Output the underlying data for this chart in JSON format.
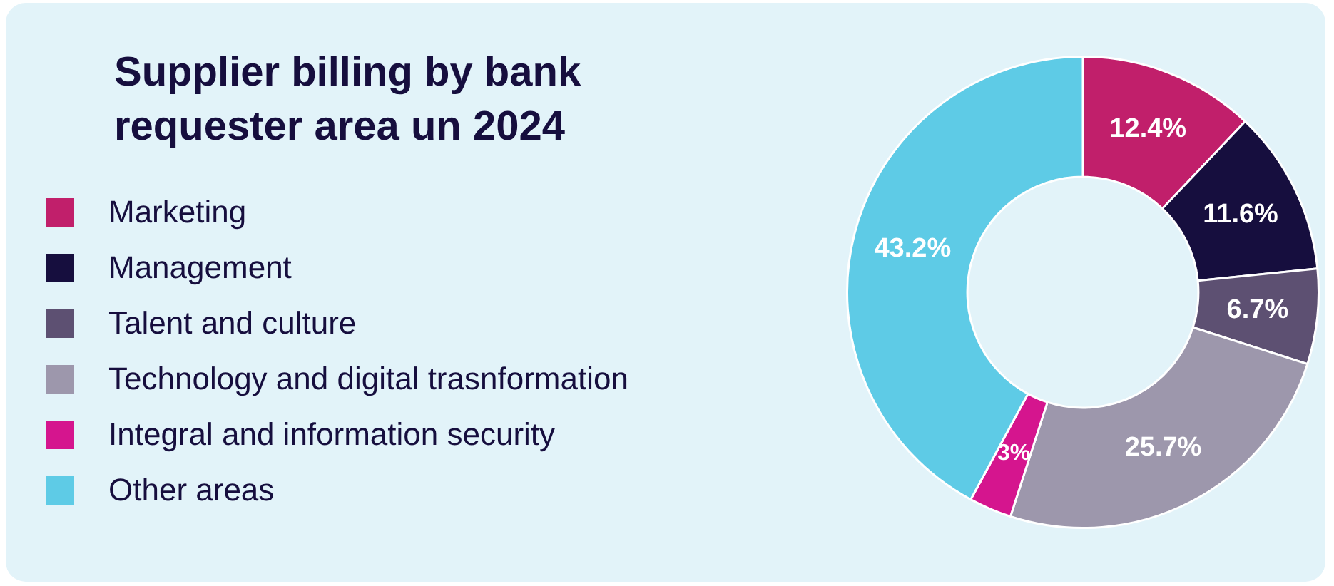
{
  "chart_data": {
    "type": "donut",
    "title": "Supplier billing by bank requester area un 2024",
    "categories": [
      "Marketing",
      "Management",
      "Talent and culture",
      "Technology and digital trasnformation",
      "Integral and information security",
      "Other areas"
    ],
    "values": [
      12.4,
      11.6,
      6.7,
      25.7,
      3,
      43.2
    ],
    "colors": [
      "#c11f6b",
      "#160e3e",
      "#5d5072",
      "#9d97ac",
      "#d5158e",
      "#5ecbe6"
    ],
    "value_labels": [
      "12.4%",
      "11.6%",
      "6.7%",
      "25.7%",
      "3%",
      "43.2%"
    ],
    "legend": "left"
  }
}
